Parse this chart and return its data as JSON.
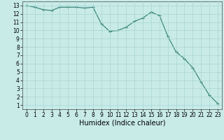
{
  "x": [
    0,
    1,
    2,
    3,
    4,
    5,
    6,
    7,
    8,
    9,
    10,
    11,
    12,
    13,
    14,
    15,
    16,
    17,
    18,
    19,
    20,
    21,
    22,
    23
  ],
  "y": [
    13.0,
    12.8,
    12.5,
    12.4,
    12.8,
    12.8,
    12.8,
    12.7,
    12.8,
    10.8,
    9.9,
    10.0,
    10.4,
    11.1,
    11.5,
    12.2,
    11.8,
    9.3,
    7.4,
    6.6,
    5.5,
    3.8,
    2.2,
    1.2
  ],
  "line_color": "#2d7d6e",
  "marker": "+",
  "bg_color": "#c8ebe8",
  "grid_color": "#a8d5d0",
  "xlabel": "Humidex (Indice chaleur)",
  "xlim": [
    -0.5,
    23.5
  ],
  "ylim": [
    0.5,
    13.5
  ],
  "yticks": [
    1,
    2,
    3,
    4,
    5,
    6,
    7,
    8,
    9,
    10,
    11,
    12,
    13
  ],
  "xticks": [
    0,
    1,
    2,
    3,
    4,
    5,
    6,
    7,
    8,
    9,
    10,
    11,
    12,
    13,
    14,
    15,
    16,
    17,
    18,
    19,
    20,
    21,
    22,
    23
  ],
  "tick_fontsize": 5.5,
  "label_fontsize": 7
}
